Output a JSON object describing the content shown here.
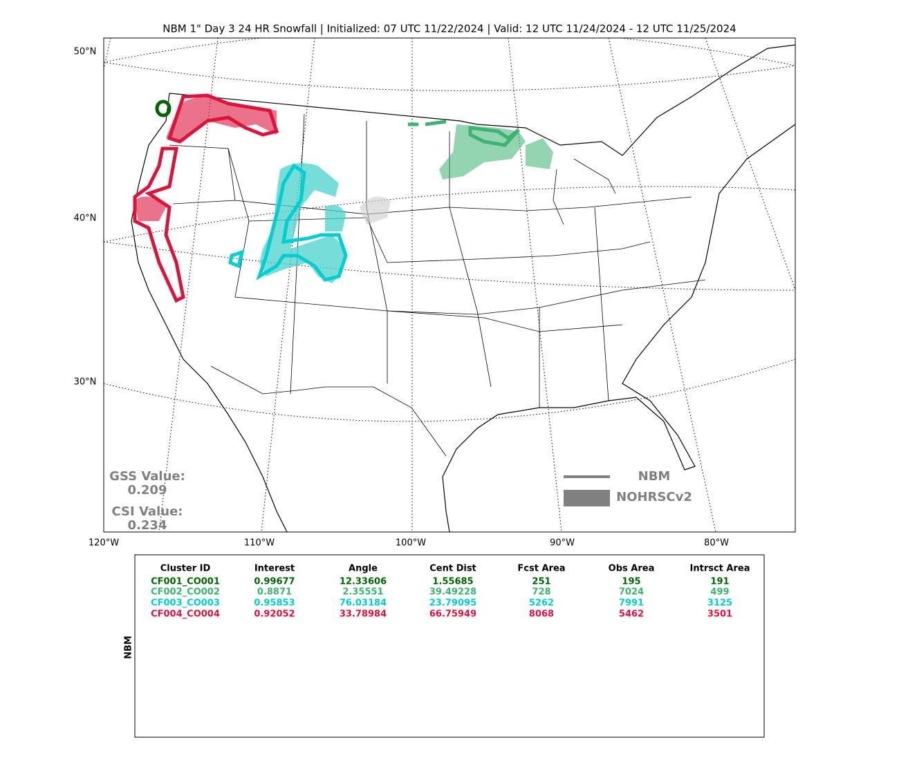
{
  "title": "NBM 1\" Day 3 24 HR Snowfall | Initialized: 07 UTC 11/22/2024 | Valid: 12 UTC 11/24/2024 - 12 UTC 11/25/2024",
  "map": {
    "lat_labels": [
      "50°N",
      "40°N",
      "30°N"
    ],
    "lon_labels": [
      "120°W",
      "110°W",
      "100°W",
      "90°W",
      "80°W"
    ],
    "scores": [
      {
        "label": "GSS Value:",
        "value": "0.209"
      },
      {
        "label": "CSI Value:",
        "value": "0.234"
      }
    ],
    "legend": [
      "NBM",
      "NOHRSCv2"
    ]
  },
  "table": {
    "side_label": "NBM",
    "header": [
      "Cluster ID",
      "Interest",
      "Angle",
      "Cent Dist",
      "Fcst Area",
      "Obs Area",
      "Intrsct Area"
    ],
    "rows": [
      {
        "color": "#006400",
        "cells": [
          "CF001_CO001",
          "0.99677",
          "12.33606",
          "1.55685",
          "251",
          "195",
          "191"
        ]
      },
      {
        "color": "#3cb371",
        "cells": [
          "CF002_CO002",
          "0.8871",
          "2.35551",
          "39.49228",
          "728",
          "7024",
          "499"
        ]
      },
      {
        "color": "#00ced1",
        "cells": [
          "CF003_CO003",
          "0.95853",
          "76.03184",
          "23.79095",
          "5262",
          "7991",
          "3125"
        ]
      },
      {
        "color": "#dc143c",
        "cells": [
          "CF004_CO004",
          "0.92052",
          "33.78984",
          "66.75949",
          "8068",
          "5462",
          "3501"
        ]
      }
    ]
  }
}
